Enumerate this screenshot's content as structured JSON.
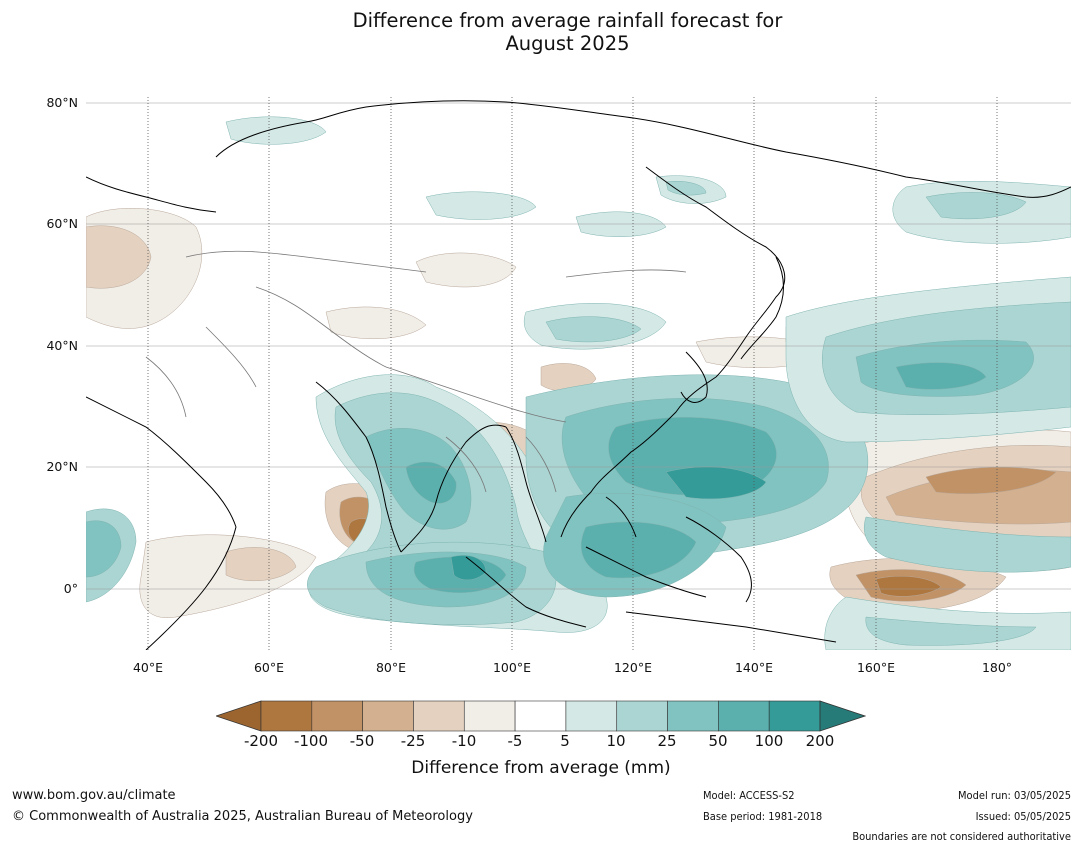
{
  "title_line1": "Difference from average rainfall forecast for",
  "title_line2": "August 2025",
  "map": {
    "lat_labels": [
      "80°N",
      "60°N",
      "40°N",
      "20°N",
      "0°"
    ],
    "lon_labels": [
      "40°E",
      "60°E",
      "80°E",
      "100°E",
      "120°E",
      "140°E",
      "160°E",
      "180°"
    ]
  },
  "colorbar": {
    "title": "Difference from average (mm)",
    "ticks": [
      "-200",
      "-100",
      "-50",
      "-25",
      "-10",
      "-5",
      "5",
      "10",
      "25",
      "50",
      "100",
      "200"
    ],
    "colors": [
      "#9c6530",
      "#ae7740",
      "#c19266",
      "#d3b08f",
      "#e5d1bf",
      "#f1ede7",
      "#ffffff",
      "#d4e9e6",
      "#aad5d3",
      "#81c3c0",
      "#5bafad",
      "#349b98",
      "#267b79"
    ]
  },
  "footer": {
    "website": "www.bom.gov.au/climate",
    "copyright": "© Commonwealth of Australia 2025, Australian Bureau of Meteorology",
    "model": "Model: ACCESS-S2",
    "base_period": "Base period: 1981-2018",
    "model_run": "Model run: 03/05/2025",
    "issued": "Issued: 05/05/2025",
    "boundaries_note": "Boundaries are not considered authoritative"
  }
}
